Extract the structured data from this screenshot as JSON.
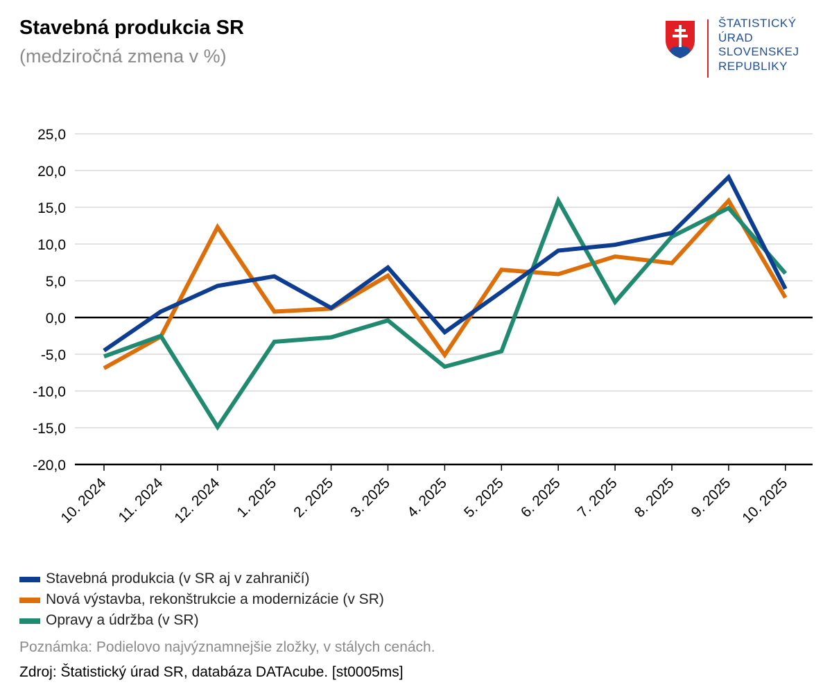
{
  "header": {
    "title": "Stavebná produkcia SR",
    "subtitle": "(medziročná zmena v %)"
  },
  "logo": {
    "org_lines": [
      "ŠTATISTICKÝ",
      "ÚRAD",
      "SLOVENSKEJ",
      "REPUBLIKY"
    ],
    "text_color": "#1d4e9e",
    "divider_color": "#e31f26"
  },
  "chart_data": {
    "type": "line",
    "title": "Stavebná produkcia SR",
    "subtitle": "(medziročná zmena v %)",
    "categories": [
      "10. 2024",
      "11. 2024",
      "12. 2024",
      "1. 2025",
      "2. 2025",
      "3. 2025",
      "4. 2025",
      "5. 2025",
      "6. 2025",
      "7. 2025",
      "8. 2025",
      "9. 2025",
      "10. 2025"
    ],
    "ylim": [
      -20,
      25
    ],
    "yticks": [
      25,
      20,
      15,
      10,
      5,
      0,
      -5,
      -10,
      -15,
      -20
    ],
    "ytick_labels": [
      "25,0",
      "20,0",
      "15,0",
      "10,0",
      "5,0",
      "0,0",
      "-5,0",
      "-10,0",
      "-15,0",
      "-20,0"
    ],
    "grid": true,
    "legend_position": "bottom-left",
    "series": [
      {
        "name": "Stavebná produkcia (v SR aj v zahraničí)",
        "color": "#0d3d91",
        "values": [
          -4.5,
          0.8,
          4.3,
          5.6,
          1.3,
          6.8,
          -2.0,
          3.5,
          9.1,
          9.9,
          11.5,
          19.1,
          3.9
        ]
      },
      {
        "name": "Nová výstavba, rekonštrukcie a modernizácie (v SR)",
        "color": "#dc6f0a",
        "values": [
          -6.9,
          -2.6,
          12.3,
          0.8,
          1.2,
          5.7,
          -5.1,
          6.5,
          5.9,
          8.3,
          7.4,
          15.9,
          2.7
        ]
      },
      {
        "name": "Opravy a údržba (v SR)",
        "color": "#1f8a70",
        "values": [
          -5.3,
          -2.5,
          -14.9,
          -3.3,
          -2.7,
          -0.4,
          -6.7,
          -4.6,
          15.9,
          2.1,
          11.0,
          14.9,
          6.0
        ]
      }
    ]
  },
  "footer": {
    "note": "Poznámka: Podielovo najvýznamnejšie zložky, v stálych cenách.",
    "source": "Zdroj: Štatistický úrad SR, databáza DATAcube. [st0005ms]"
  }
}
